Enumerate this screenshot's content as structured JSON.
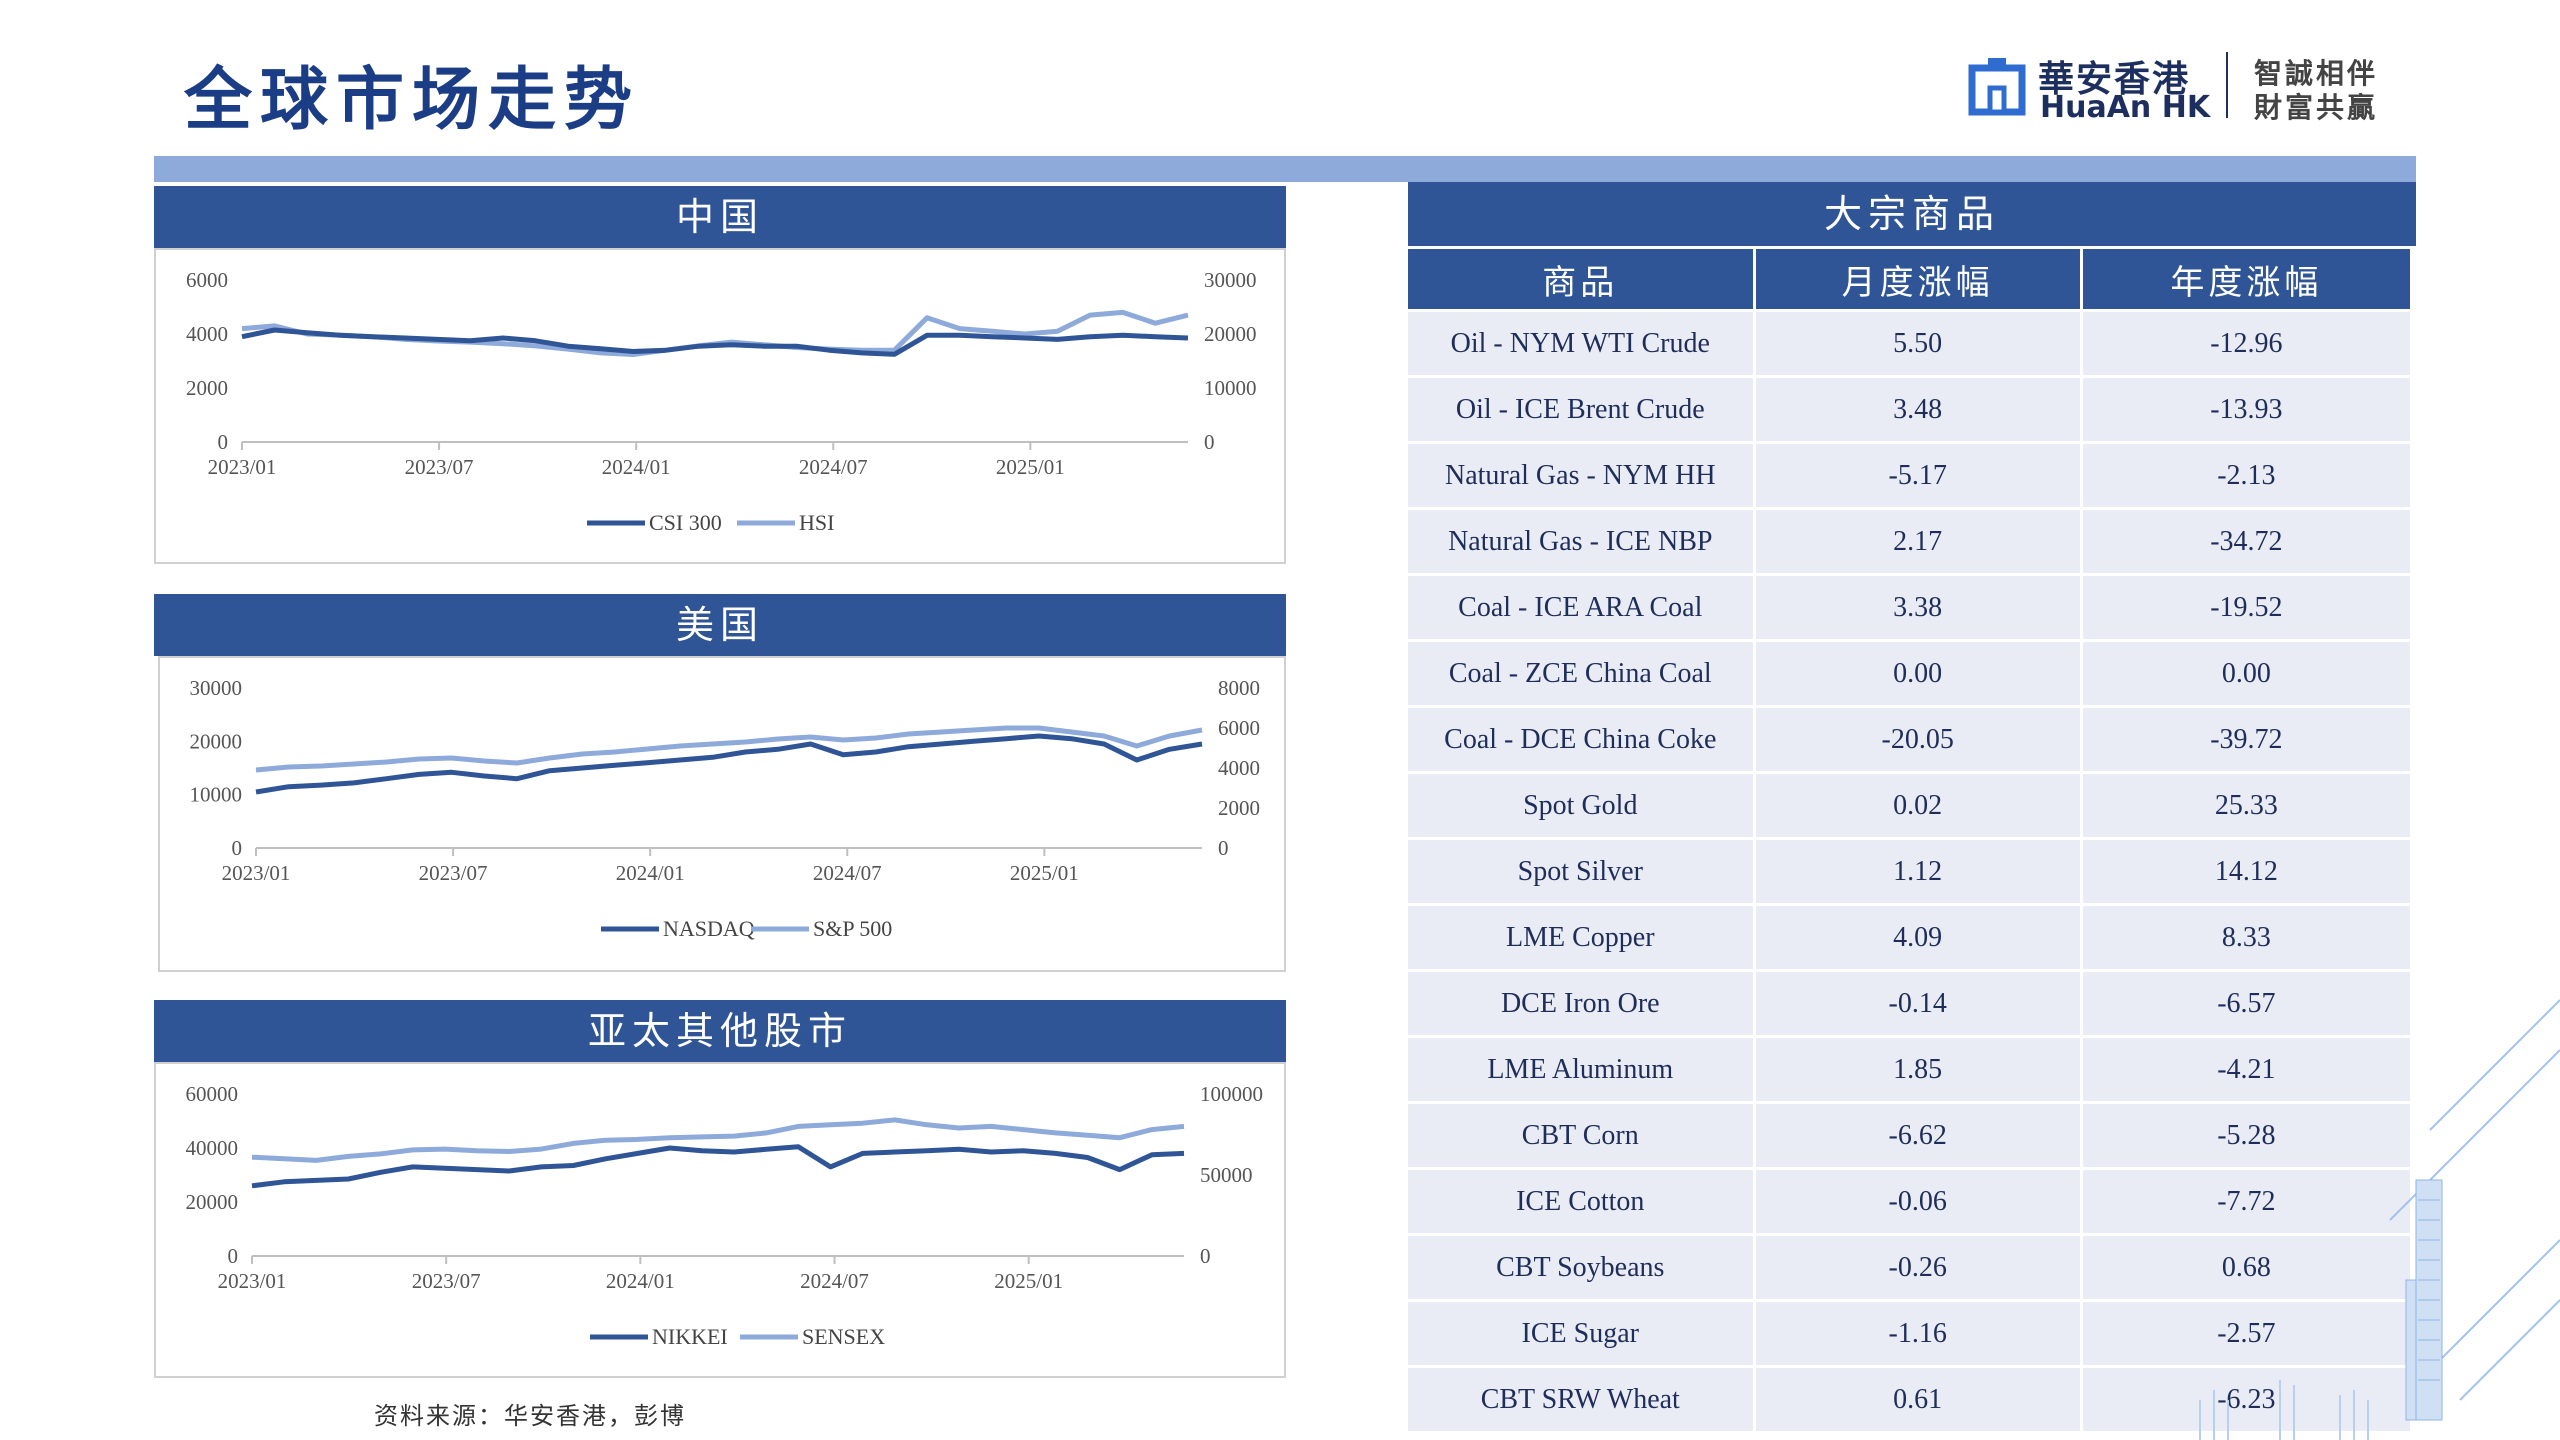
{
  "page": {
    "title": "全球市场走势",
    "source_note": "资料来源：华安香港，彭博"
  },
  "logo": {
    "name_cn": "華安香港",
    "name_en": "HuaAn HK",
    "tagline_1": "智誠相伴",
    "tagline_2": "財富共贏"
  },
  "colors": {
    "header_blue": "#2f5597",
    "series_dark": "#2f5597",
    "series_light": "#8eaadb",
    "top_bar": "#8eaadb"
  },
  "panels": {
    "china": {
      "title": "中国"
    },
    "usa": {
      "title": "美国"
    },
    "apac": {
      "title": "亚太其他股市"
    }
  },
  "chart_data": [
    {
      "type": "line",
      "title": "中国",
      "x_ticks": [
        "2023/01",
        "2023/07",
        "2024/01",
        "2024/07",
        "2025/01"
      ],
      "y_left": {
        "ticks": [
          "6000",
          "4000",
          "2000",
          "0"
        ],
        "range": [
          0,
          6000
        ]
      },
      "y_right": {
        "ticks": [
          "30000",
          "20000",
          "10000",
          "0"
        ],
        "range": [
          0,
          30000
        ]
      },
      "series": [
        {
          "name": "CSI 300",
          "axis": "left",
          "color": "#2f5597",
          "values": [
            3900,
            4150,
            4050,
            3950,
            3900,
            3850,
            3800,
            3750,
            3850,
            3750,
            3550,
            3450,
            3350,
            3400,
            3550,
            3600,
            3550,
            3550,
            3400,
            3300,
            3250,
            3950,
            3950,
            3900,
            3850,
            3800,
            3900,
            3950,
            3900,
            3850
          ]
        },
        {
          "name": "HSI",
          "axis": "right",
          "color": "#8eaadb",
          "values": [
            21000,
            21500,
            20000,
            19800,
            19500,
            19000,
            18700,
            18500,
            18200,
            17800,
            17200,
            16500,
            16200,
            17000,
            17800,
            18500,
            18000,
            17500,
            17200,
            17000,
            17000,
            23000,
            21000,
            20500,
            20000,
            20500,
            23500,
            24000,
            22000,
            23500
          ]
        }
      ]
    },
    {
      "type": "line",
      "title": "美国",
      "x_ticks": [
        "2023/01",
        "2023/07",
        "2024/01",
        "2024/07",
        "2025/01"
      ],
      "y_left": {
        "ticks": [
          "30000",
          "20000",
          "10000",
          "0"
        ],
        "range": [
          0,
          30000
        ]
      },
      "y_right": {
        "ticks": [
          "8000",
          "6000",
          "4000",
          "2000",
          "0"
        ],
        "range": [
          0,
          8000
        ]
      },
      "series": [
        {
          "name": "NASDAQ",
          "axis": "left",
          "color": "#2f5597",
          "values": [
            10500,
            11500,
            11800,
            12200,
            13000,
            13800,
            14200,
            13500,
            13000,
            14500,
            15000,
            15500,
            16000,
            16500,
            17000,
            18000,
            18500,
            19500,
            17500,
            18000,
            19000,
            19500,
            20000,
            20500,
            21000,
            20500,
            19500,
            16500,
            18500,
            19500
          ]
        },
        {
          "name": "S&P 500",
          "axis": "right",
          "color": "#8eaadb",
          "values": [
            3900,
            4050,
            4100,
            4200,
            4300,
            4450,
            4500,
            4350,
            4250,
            4500,
            4700,
            4800,
            4950,
            5100,
            5200,
            5300,
            5450,
            5550,
            5400,
            5500,
            5700,
            5800,
            5900,
            6000,
            6000,
            5800,
            5600,
            5100,
            5600,
            5900
          ]
        }
      ]
    },
    {
      "type": "line",
      "title": "亚太其他股市",
      "x_ticks": [
        "2023/01",
        "2023/07",
        "2024/01",
        "2024/07",
        "2025/01"
      ],
      "y_left": {
        "ticks": [
          "60000",
          "40000",
          "20000",
          "0"
        ],
        "range": [
          0,
          60000
        ]
      },
      "y_right": {
        "ticks": [
          "100000",
          "50000",
          "0"
        ],
        "range": [
          0,
          100000
        ]
      },
      "series": [
        {
          "name": "NIKKEI",
          "axis": "left",
          "color": "#2f5597",
          "values": [
            26000,
            27500,
            28000,
            28500,
            31000,
            33000,
            32500,
            32000,
            31500,
            33000,
            33500,
            36000,
            38000,
            40000,
            39000,
            38500,
            39500,
            40500,
            33000,
            38000,
            38500,
            39000,
            39500,
            38500,
            39000,
            38000,
            36500,
            32000,
            37500,
            38000
          ]
        },
        {
          "name": "SENSEX",
          "axis": "right",
          "color": "#8eaadb",
          "values": [
            61000,
            60000,
            59000,
            61500,
            63000,
            65500,
            66000,
            65000,
            64500,
            66000,
            69500,
            71500,
            72000,
            73000,
            73500,
            74000,
            76000,
            80000,
            81000,
            82000,
            84000,
            81000,
            79000,
            80000,
            78000,
            76000,
            74500,
            73000,
            78000,
            80000
          ]
        }
      ]
    }
  ],
  "commodities": {
    "title": "大宗商品",
    "headers": [
      "商品",
      "月度涨幅",
      "年度涨幅"
    ],
    "rows": [
      {
        "name": "Oil - NYM WTI Crude",
        "monthly": "5.50",
        "yearly": "-12.96"
      },
      {
        "name": "Oil - ICE Brent Crude",
        "monthly": "3.48",
        "yearly": "-13.93"
      },
      {
        "name": "Natural Gas - NYM HH",
        "monthly": "-5.17",
        "yearly": "-2.13"
      },
      {
        "name": "Natural Gas - ICE NBP",
        "monthly": "2.17",
        "yearly": "-34.72"
      },
      {
        "name": "Coal - ICE ARA Coal",
        "monthly": "3.38",
        "yearly": "-19.52"
      },
      {
        "name": "Coal - ZCE China Coal",
        "monthly": "0.00",
        "yearly": "0.00"
      },
      {
        "name": "Coal - DCE China Coke",
        "monthly": "-20.05",
        "yearly": "-39.72"
      },
      {
        "name": "Spot Gold",
        "monthly": "0.02",
        "yearly": "25.33"
      },
      {
        "name": "Spot Silver",
        "monthly": "1.12",
        "yearly": "14.12"
      },
      {
        "name": "LME Copper",
        "monthly": "4.09",
        "yearly": "8.33"
      },
      {
        "name": "DCE Iron Ore",
        "monthly": "-0.14",
        "yearly": "-6.57"
      },
      {
        "name": "LME Aluminum",
        "monthly": "1.85",
        "yearly": "-4.21"
      },
      {
        "name": "CBT Corn",
        "monthly": "-6.62",
        "yearly": "-5.28"
      },
      {
        "name": "ICE Cotton",
        "monthly": "-0.06",
        "yearly": "-7.72"
      },
      {
        "name": "CBT Soybeans",
        "monthly": "-0.26",
        "yearly": "0.68"
      },
      {
        "name": "ICE Sugar",
        "monthly": "-1.16",
        "yearly": "-2.57"
      },
      {
        "name": "CBT SRW Wheat",
        "monthly": "0.61",
        "yearly": "-6.23"
      }
    ]
  }
}
